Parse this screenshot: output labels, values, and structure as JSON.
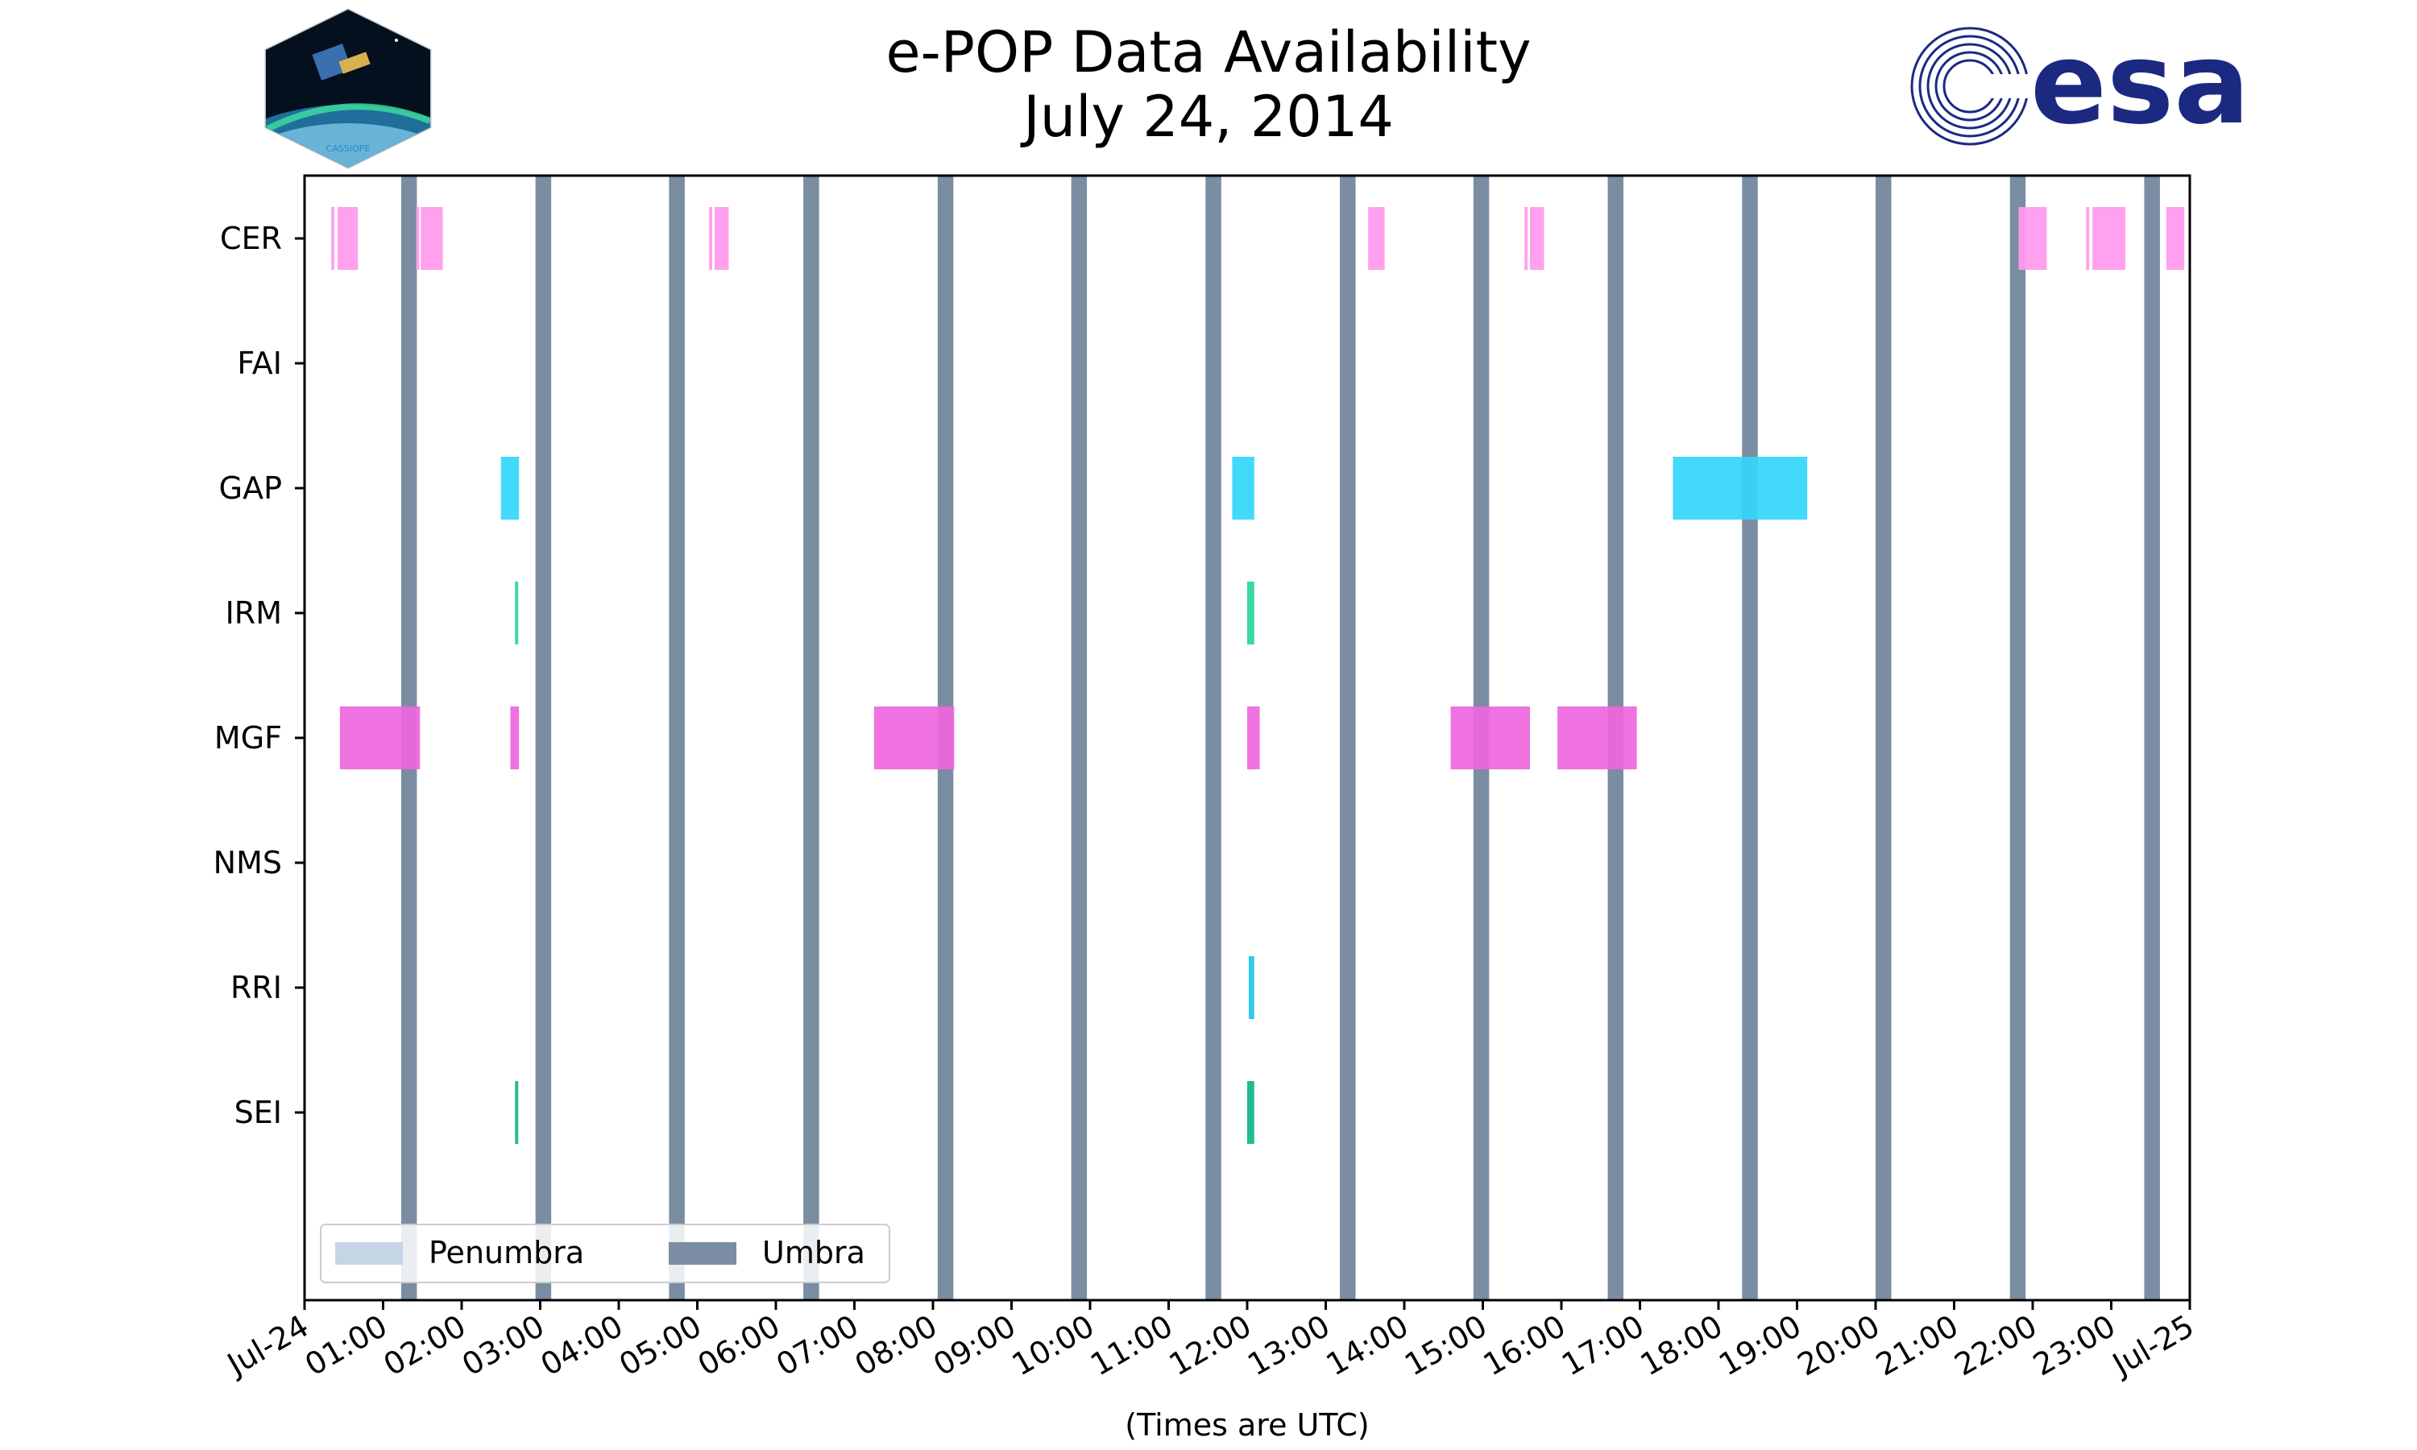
{
  "title": "e-POP Data Availability",
  "subtitle": "July 24, 2014",
  "logos": {
    "left": {
      "name": "CASSIOPE mission logo",
      "text": "CASSIOPE"
    },
    "right": {
      "name": "ESA logo",
      "text": "esa",
      "color": "#1b2a80"
    }
  },
  "chart_data": {
    "type": "timeline",
    "xlabel": "(Times are UTC)",
    "x_range_hours": [
      0,
      24
    ],
    "x_ticks": [
      "Jul-24",
      "01:00",
      "02:00",
      "03:00",
      "04:00",
      "05:00",
      "06:00",
      "07:00",
      "08:00",
      "09:00",
      "10:00",
      "11:00",
      "12:00",
      "13:00",
      "14:00",
      "15:00",
      "16:00",
      "17:00",
      "18:00",
      "19:00",
      "20:00",
      "21:00",
      "22:00",
      "23:00",
      "Jul-25"
    ],
    "instruments": [
      "CER",
      "FAI",
      "GAP",
      "IRM",
      "MGF",
      "NMS",
      "RRI",
      "SEI"
    ],
    "colors": {
      "CER": "#ff99ee",
      "GAP": "#33d6fa",
      "IRM": "#2ad3a0",
      "MGF": "#ee66dd",
      "RRI": "#22c3ee",
      "SEI": "#11b488",
      "umbra": "#7a8da2",
      "penumbra": "#c5d5e6"
    },
    "umbra_intervals": [
      [
        1.23,
        1.43
      ],
      [
        2.94,
        3.14
      ],
      [
        4.64,
        4.84
      ],
      [
        6.35,
        6.55
      ],
      [
        8.06,
        8.26
      ],
      [
        9.76,
        9.96
      ],
      [
        11.47,
        11.67
      ],
      [
        13.18,
        13.38
      ],
      [
        14.88,
        15.08
      ],
      [
        16.59,
        16.79
      ],
      [
        18.3,
        18.5
      ],
      [
        20.0,
        20.2
      ],
      [
        21.71,
        21.91
      ],
      [
        23.42,
        23.62
      ]
    ],
    "availability": {
      "CER": [
        [
          0.34,
          0.38
        ],
        [
          0.42,
          0.68
        ],
        [
          1.42,
          1.46
        ],
        [
          1.48,
          1.76
        ],
        [
          5.15,
          5.19
        ],
        [
          5.22,
          5.4
        ],
        [
          13.54,
          13.75
        ],
        [
          15.53,
          15.57
        ],
        [
          15.6,
          15.78
        ],
        [
          21.82,
          22.18
        ],
        [
          22.68,
          22.72
        ],
        [
          22.76,
          23.18
        ],
        [
          23.7,
          23.93
        ]
      ],
      "FAI": [],
      "GAP": [
        [
          2.5,
          2.73
        ],
        [
          11.81,
          12.09
        ],
        [
          17.42,
          19.13
        ]
      ],
      "IRM": [
        [
          2.68,
          2.72
        ],
        [
          12.0,
          12.09
        ]
      ],
      "MGF": [
        [
          0.45,
          1.47
        ],
        [
          2.62,
          2.73
        ],
        [
          7.25,
          8.27
        ],
        [
          12.0,
          12.16
        ],
        [
          14.59,
          15.6
        ],
        [
          15.95,
          16.96
        ]
      ],
      "NMS": [],
      "RRI": [
        [
          12.02,
          12.09
        ]
      ],
      "SEI": [
        [
          2.68,
          2.72
        ],
        [
          12.0,
          12.09
        ]
      ]
    },
    "legend": {
      "location": "lower-left",
      "entries": [
        "Penumbra",
        "Umbra"
      ]
    }
  }
}
